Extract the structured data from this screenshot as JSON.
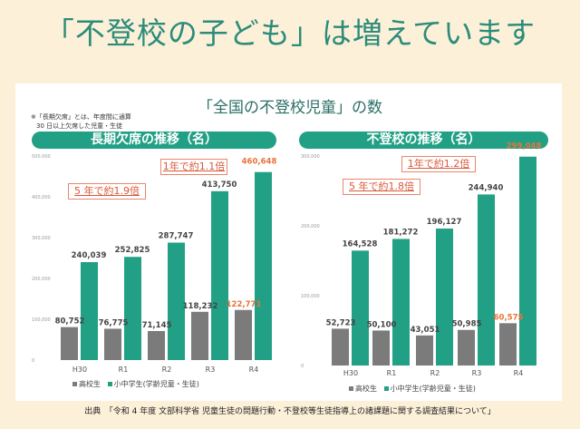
{
  "title": "「不登校の子ども」は増えています",
  "subtitle": "「全国の不登校児童」の数",
  "note_line1": "※「長期欠席」とは、年度間に通算",
  "note_line2": "30 日以上欠席した児童・生徒",
  "source": "出典　「令和 4 年度 文部科学省 児童生徒の問題行動・不登校等生徒指導上の諸課題に関する調査結果について」",
  "colors": {
    "high": "#7b7b7b",
    "elem": "#22a085",
    "highlight": "#e8743b"
  },
  "chart_data": [
    {
      "type": "bar",
      "title": "長期欠席の推移（名）",
      "categories": [
        "H30",
        "R1",
        "R2",
        "R3",
        "R4"
      ],
      "series": [
        {
          "name": "高校生",
          "values": [
            80752,
            76775,
            71145,
            118232,
            122771
          ]
        },
        {
          "name": "小中学生(学齢児童・生徒)",
          "values": [
            240039,
            252825,
            287747,
            413750,
            460648
          ]
        }
      ],
      "labels": [
        [
          "80,752",
          "76,775",
          "71,145",
          "118,232",
          "122,771"
        ],
        [
          "240,039",
          "252,825",
          "287,747",
          "413,750",
          "460,648"
        ]
      ],
      "yticks": [
        "0",
        "100,000",
        "200,000",
        "300,000",
        "400,000",
        "500,000"
      ],
      "ylim": [
        0,
        500000
      ],
      "annotations": [
        "5 年で約1.9倍",
        "1年で約1.1倍"
      ],
      "legend": "bottom"
    },
    {
      "type": "bar",
      "title": "不登校の推移（名）",
      "categories": [
        "H30",
        "R1",
        "R2",
        "R3",
        "R4"
      ],
      "series": [
        {
          "name": "高校生",
          "values": [
            52723,
            50100,
            43051,
            50985,
            60575
          ]
        },
        {
          "name": "小中学生(学齢児童・生徒)",
          "values": [
            164528,
            181272,
            196127,
            244940,
            299048
          ]
        }
      ],
      "labels": [
        [
          "52,723",
          "50,100",
          "43,051",
          "50,985",
          "60,575"
        ],
        [
          "164,528",
          "181,272",
          "196,127",
          "244,940",
          "299,048"
        ]
      ],
      "yticks": [
        "0",
        "100,000",
        "200,000",
        "300,000"
      ],
      "ylim": [
        0,
        300000
      ],
      "annotations": [
        "5 年で約1.8倍",
        "1年で約1.2倍"
      ],
      "legend": "bottom"
    }
  ]
}
